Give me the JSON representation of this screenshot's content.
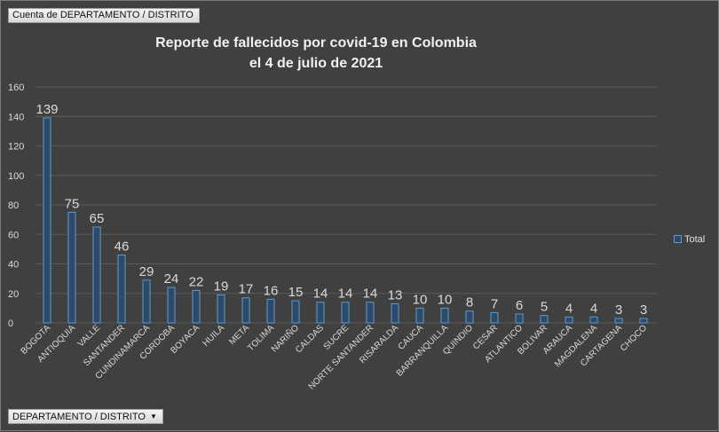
{
  "pivot": {
    "value_field": "Cuenta de DEPARTAMENTO   / DISTRITO",
    "axis_field": "DEPARTAMENTO  / DISTRITO"
  },
  "chart_data": {
    "type": "bar",
    "title_line1": "Reporte de fallecidos por covid-19 en Colombia",
    "title_line2": "el 4 de julio de 2021",
    "categories": [
      "BOGOTA",
      "ANTIOQUIA",
      "VALLE",
      "SANTANDER",
      "CUNDINAMARCA",
      "CORDOBA",
      "BOYACA",
      "HUILA",
      "META",
      "TOLIMA",
      "NARIÑO",
      "CALDAS",
      "SUCRE",
      "NORTE SANTANDER",
      "RISARALDA",
      "CAUCA",
      "BARRANQUILLA",
      "QUINDIO",
      "CESAR",
      "ATLANTICO",
      "BOLIVAR",
      "ARAUCA",
      "MAGDALENA",
      "CARTAGENA",
      "CHOCO"
    ],
    "series": [
      {
        "name": "Total",
        "values": [
          139,
          75,
          65,
          46,
          29,
          24,
          22,
          19,
          17,
          16,
          15,
          14,
          14,
          14,
          13,
          10,
          10,
          8,
          7,
          6,
          5,
          4,
          4,
          3,
          3
        ]
      }
    ],
    "yticks": [
      "0",
      "20",
      "40",
      "60",
      "80",
      "100",
      "120",
      "140",
      "160"
    ],
    "ylim": [
      0,
      160
    ],
    "grid": true,
    "data_labels": true,
    "legend_position": "right",
    "colors": {
      "bar_fill": "#2e4a66",
      "bar_stroke": "#5b9bd5",
      "grid": "#5a5a5a",
      "text": "#d9d9d9"
    }
  }
}
